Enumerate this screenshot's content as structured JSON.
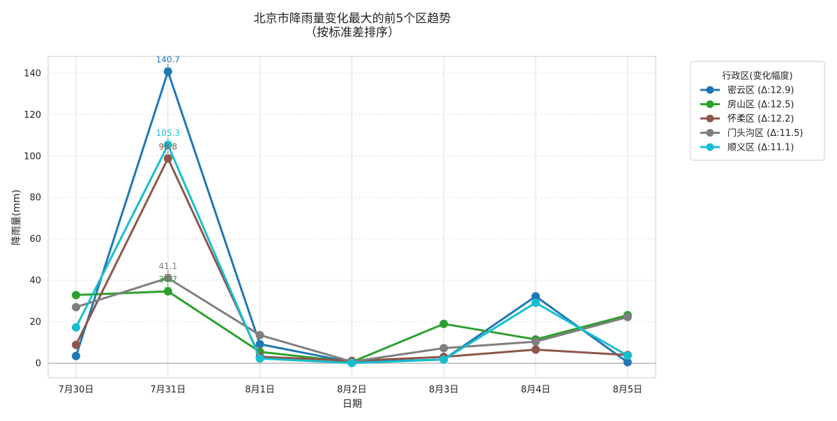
{
  "chart_data": {
    "type": "line",
    "title": "北京市降雨量变化最大的前5个区趋势",
    "subtitle": "（按标准差排序）",
    "xlabel": "日期",
    "ylabel": "降雨量(mm)",
    "categories": [
      "7月30日",
      "7月31日",
      "8月1日",
      "8月2日",
      "8月3日",
      "8月4日",
      "8月5日"
    ],
    "ylim": [
      -7,
      148
    ],
    "yticks": [
      0,
      20,
      40,
      60,
      80,
      100,
      120,
      140
    ],
    "grid": true,
    "legend_placement": "outside-upper-right",
    "legend_title": "行政区(变化幅度)",
    "series": [
      {
        "name": "密云区 (Δ:12.9)",
        "color": "#1f77b4",
        "values": [
          3.5,
          140.7,
          9.2,
          0.5,
          1.8,
          32.3,
          0.5
        ],
        "peak_label": "140.7"
      },
      {
        "name": "房山区 (Δ:12.5)",
        "color": "#2ca02c",
        "values": [
          32.9,
          34.7,
          5.5,
          0.6,
          19.0,
          11.5,
          23.2
        ],
        "peak_label": "34.7"
      },
      {
        "name": "怀柔区 (Δ:12.2)",
        "color": "#8c564b",
        "values": [
          8.9,
          98.8,
          3.2,
          1.2,
          3.1,
          6.6,
          4.0
        ],
        "peak_label": "98.8"
      },
      {
        "name": "门头沟区 (Δ:11.5)",
        "color": "#7f7f7f",
        "values": [
          27.1,
          41.1,
          13.6,
          0.8,
          7.3,
          10.4,
          22.3
        ],
        "peak_label": "41.1"
      },
      {
        "name": "顺义区 (Δ:11.1)",
        "color": "#17becf",
        "values": [
          17.3,
          105.3,
          2.3,
          0.1,
          1.8,
          29.2,
          3.7
        ],
        "peak_label": "105.3"
      }
    ]
  }
}
